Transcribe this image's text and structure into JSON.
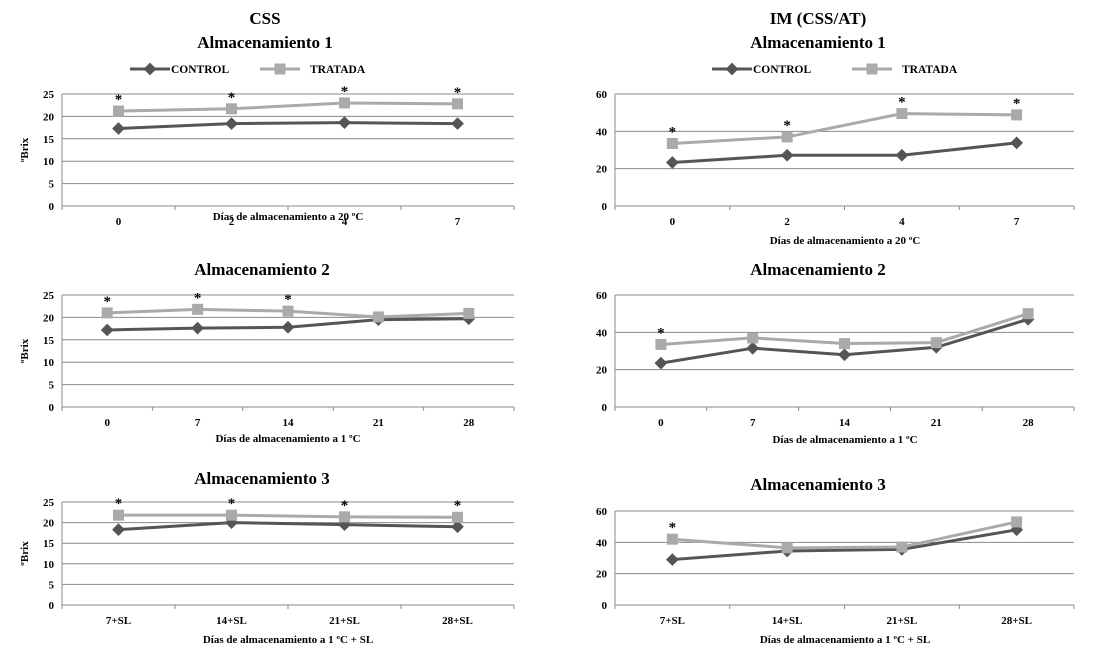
{
  "figure": {
    "left_title": "CSS",
    "right_title": "IM (CSS/AT)"
  },
  "legend": {
    "control": "CONTROL",
    "treated": "TRATADA"
  },
  "colors": {
    "control": "#555555",
    "treated": "#aaaaaa",
    "grid": "#8a8a8a"
  },
  "chart_data": [
    {
      "type": "line",
      "title": "Almacenamiento 1",
      "categories": [
        "0",
        "2",
        "4",
        "7"
      ],
      "xlabel": "Días de almacenamiento a 20 ºC",
      "ylabel": "ºBrix",
      "ylim": [
        0,
        25
      ],
      "yticks": [
        0,
        5,
        10,
        15,
        20,
        25
      ],
      "legend": "top",
      "series": [
        {
          "name": "CONTROL",
          "values": [
            17.3,
            18.4,
            18.6,
            18.4
          ]
        },
        {
          "name": "TRATADA",
          "values": [
            21.2,
            21.7,
            23.0,
            22.8
          ]
        }
      ],
      "significant": [
        true,
        true,
        true,
        true
      ]
    },
    {
      "type": "line",
      "title": "Almacenamiento 2",
      "categories": [
        "0",
        "7",
        "14",
        "21",
        "28"
      ],
      "xlabel": "Días de almacenamiento a 1 ºC",
      "ylabel": "ºBrix",
      "ylim": [
        0,
        25
      ],
      "yticks": [
        0,
        5,
        10,
        15,
        20,
        25
      ],
      "series": [
        {
          "name": "CONTROL",
          "values": [
            17.2,
            17.6,
            17.8,
            19.5,
            19.7
          ]
        },
        {
          "name": "TRATADA",
          "values": [
            21.0,
            21.8,
            21.4,
            20.1,
            20.9
          ]
        }
      ],
      "significant": [
        true,
        true,
        true,
        false,
        false
      ]
    },
    {
      "type": "line",
      "title": "Almacenamiento 3",
      "categories": [
        "7+SL",
        "14+SL",
        "21+SL",
        "28+SL"
      ],
      "xlabel": "Días de almacenamiento a 1 ºC + SL",
      "ylabel": "ºBrix",
      "ylim": [
        0,
        25
      ],
      "yticks": [
        0,
        5,
        10,
        15,
        20,
        25
      ],
      "series": [
        {
          "name": "CONTROL",
          "values": [
            18.3,
            20.0,
            19.5,
            19.0
          ]
        },
        {
          "name": "TRATADA",
          "values": [
            21.8,
            21.8,
            21.4,
            21.3
          ]
        }
      ],
      "significant": [
        true,
        true,
        true,
        true
      ]
    },
    {
      "type": "line",
      "title": "Almacenamiento 1",
      "categories": [
        "0",
        "2",
        "4",
        "7"
      ],
      "xlabel": "Días de almacenamiento a 20 ºC",
      "ylabel": "",
      "ylim": [
        0,
        60
      ],
      "yticks": [
        0,
        20,
        40,
        60
      ],
      "legend": "top",
      "series": [
        {
          "name": "CONTROL",
          "values": [
            23.3,
            27.2,
            27.2,
            33.8
          ]
        },
        {
          "name": "TRATADA",
          "values": [
            33.5,
            37.0,
            49.5,
            48.8
          ]
        }
      ],
      "significant": [
        true,
        true,
        true,
        true
      ]
    },
    {
      "type": "line",
      "title": "Almacenamiento 2",
      "categories": [
        "0",
        "7",
        "14",
        "21",
        "28"
      ],
      "xlabel": "Días de almacenamiento a 1 ºC",
      "ylabel": "",
      "ylim": [
        0,
        60
      ],
      "yticks": [
        0,
        20,
        40,
        60
      ],
      "series": [
        {
          "name": "CONTROL",
          "values": [
            23.5,
            31.5,
            28.0,
            32.0,
            47.0
          ]
        },
        {
          "name": "TRATADA",
          "values": [
            33.5,
            37.0,
            34.0,
            34.5,
            50.0
          ]
        }
      ],
      "significant": [
        true,
        false,
        false,
        false,
        false
      ]
    },
    {
      "type": "line",
      "title": "Almacenamiento 3",
      "categories": [
        "7+SL",
        "14+SL",
        "21+SL",
        "28+SL"
      ],
      "xlabel": "Días de almacenamiento a 1 ºC + SL",
      "ylabel": "",
      "ylim": [
        0,
        60
      ],
      "yticks": [
        0,
        20,
        40,
        60
      ],
      "series": [
        {
          "name": "CONTROL",
          "values": [
            29.0,
            34.5,
            35.5,
            48.0
          ]
        },
        {
          "name": "TRATADA",
          "values": [
            42.0,
            36.5,
            37.0,
            53.0
          ]
        }
      ],
      "significant": [
        true,
        false,
        false,
        false
      ]
    }
  ]
}
